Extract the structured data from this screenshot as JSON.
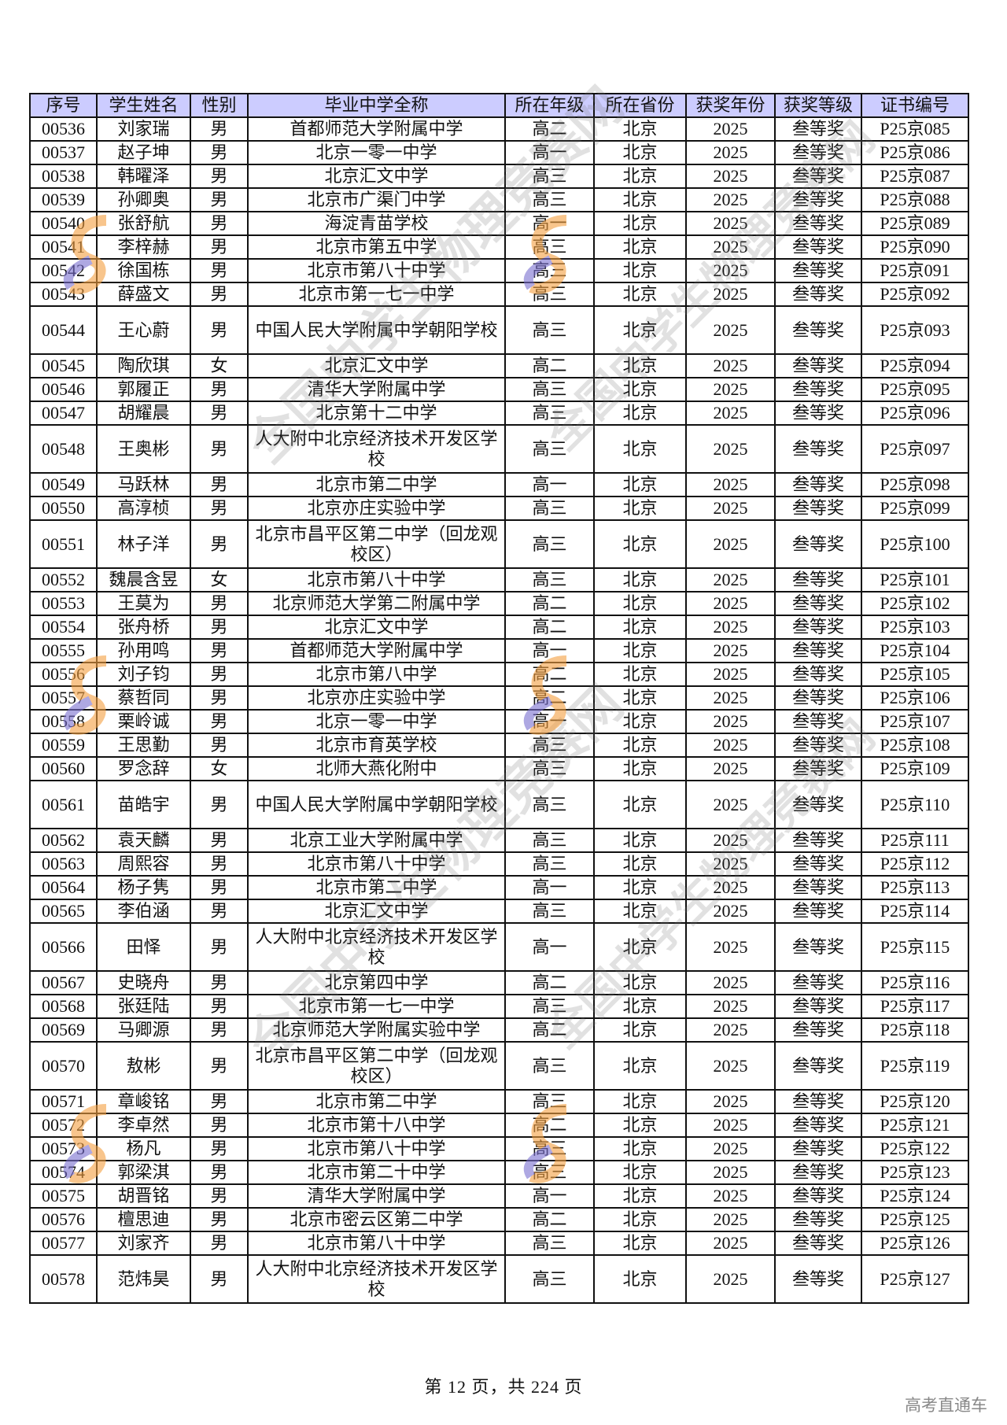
{
  "table": {
    "headers": [
      "序号",
      "学生姓名",
      "性别",
      "毕业中学全称",
      "所在年级",
      "所在省份",
      "获奖年份",
      "获奖等级",
      "证书编号"
    ],
    "rows": [
      [
        "00536",
        "刘家瑞",
        "男",
        "首都师范大学附属中学",
        "高二",
        "北京",
        "2025",
        "叁等奖",
        "P25京085"
      ],
      [
        "00537",
        "赵子坤",
        "男",
        "北京一零一中学",
        "高一",
        "北京",
        "2025",
        "叁等奖",
        "P25京086"
      ],
      [
        "00538",
        "韩曜泽",
        "男",
        "北京汇文中学",
        "高三",
        "北京",
        "2025",
        "叁等奖",
        "P25京087"
      ],
      [
        "00539",
        "孙卿奥",
        "男",
        "北京市广渠门中学",
        "高三",
        "北京",
        "2025",
        "叁等奖",
        "P25京088"
      ],
      [
        "00540",
        "张舒航",
        "男",
        "海淀青苗学校",
        "高一",
        "北京",
        "2025",
        "叁等奖",
        "P25京089"
      ],
      [
        "00541",
        "李梓赫",
        "男",
        "北京市第五中学",
        "高三",
        "北京",
        "2025",
        "叁等奖",
        "P25京090"
      ],
      [
        "00542",
        "徐国栋",
        "男",
        "北京市第八十中学",
        "高三",
        "北京",
        "2025",
        "叁等奖",
        "P25京091"
      ],
      [
        "00543",
        "薛盛文",
        "男",
        "北京市第一七一中学",
        "高三",
        "北京",
        "2025",
        "叁等奖",
        "P25京092"
      ],
      [
        "00544",
        "王心蔚",
        "男",
        "中国人民大学附属中学朝阳学校",
        "高三",
        "北京",
        "2025",
        "叁等奖",
        "P25京093"
      ],
      [
        "00545",
        "陶欣琪",
        "女",
        "北京汇文中学",
        "高二",
        "北京",
        "2025",
        "叁等奖",
        "P25京094"
      ],
      [
        "00546",
        "郭履正",
        "男",
        "清华大学附属中学",
        "高三",
        "北京",
        "2025",
        "叁等奖",
        "P25京095"
      ],
      [
        "00547",
        "胡耀晨",
        "男",
        "北京第十二中学",
        "高三",
        "北京",
        "2025",
        "叁等奖",
        "P25京096"
      ],
      [
        "00548",
        "王奥彬",
        "男",
        "人大附中北京经济技术开发区学校",
        "高三",
        "北京",
        "2025",
        "叁等奖",
        "P25京097"
      ],
      [
        "00549",
        "马跃林",
        "男",
        "北京市第二中学",
        "高一",
        "北京",
        "2025",
        "叁等奖",
        "P25京098"
      ],
      [
        "00550",
        "高淳桢",
        "男",
        "北京亦庄实验中学",
        "高三",
        "北京",
        "2025",
        "叁等奖",
        "P25京099"
      ],
      [
        "00551",
        "林子洋",
        "男",
        "北京市昌平区第二中学（回龙观校区）",
        "高三",
        "北京",
        "2025",
        "叁等奖",
        "P25京100"
      ],
      [
        "00552",
        "魏晨含昱",
        "女",
        "北京市第八十中学",
        "高三",
        "北京",
        "2025",
        "叁等奖",
        "P25京101"
      ],
      [
        "00553",
        "王莫为",
        "男",
        "北京师范大学第二附属中学",
        "高二",
        "北京",
        "2025",
        "叁等奖",
        "P25京102"
      ],
      [
        "00554",
        "张舟桥",
        "男",
        "北京汇文中学",
        "高二",
        "北京",
        "2025",
        "叁等奖",
        "P25京103"
      ],
      [
        "00555",
        "孙用鸣",
        "男",
        "首都师范大学附属中学",
        "高一",
        "北京",
        "2025",
        "叁等奖",
        "P25京104"
      ],
      [
        "00556",
        "刘子钧",
        "男",
        "北京市第八中学",
        "高二",
        "北京",
        "2025",
        "叁等奖",
        "P25京105"
      ],
      [
        "00557",
        "蔡哲同",
        "男",
        "北京亦庄实验中学",
        "高二",
        "北京",
        "2025",
        "叁等奖",
        "P25京106"
      ],
      [
        "00558",
        "栗岭诚",
        "男",
        "北京一零一中学",
        "高一",
        "北京",
        "2025",
        "叁等奖",
        "P25京107"
      ],
      [
        "00559",
        "王思勤",
        "男",
        "北京市育英学校",
        "高三",
        "北京",
        "2025",
        "叁等奖",
        "P25京108"
      ],
      [
        "00560",
        "罗念辞",
        "女",
        "北师大燕化附中",
        "高三",
        "北京",
        "2025",
        "叁等奖",
        "P25京109"
      ],
      [
        "00561",
        "苗皓宇",
        "男",
        "中国人民大学附属中学朝阳学校",
        "高三",
        "北京",
        "2025",
        "叁等奖",
        "P25京110"
      ],
      [
        "00562",
        "袁天麟",
        "男",
        "北京工业大学附属中学",
        "高三",
        "北京",
        "2025",
        "叁等奖",
        "P25京111"
      ],
      [
        "00563",
        "周熙容",
        "男",
        "北京市第八十中学",
        "高三",
        "北京",
        "2025",
        "叁等奖",
        "P25京112"
      ],
      [
        "00564",
        "杨子隽",
        "男",
        "北京市第二中学",
        "高一",
        "北京",
        "2025",
        "叁等奖",
        "P25京113"
      ],
      [
        "00565",
        "李伯涵",
        "男",
        "北京汇文中学",
        "高三",
        "北京",
        "2025",
        "叁等奖",
        "P25京114"
      ],
      [
        "00566",
        "田怿",
        "男",
        "人大附中北京经济技术开发区学校",
        "高一",
        "北京",
        "2025",
        "叁等奖",
        "P25京115"
      ],
      [
        "00567",
        "史晓舟",
        "男",
        "北京第四中学",
        "高二",
        "北京",
        "2025",
        "叁等奖",
        "P25京116"
      ],
      [
        "00568",
        "张廷陆",
        "男",
        "北京市第一七一中学",
        "高三",
        "北京",
        "2025",
        "叁等奖",
        "P25京117"
      ],
      [
        "00569",
        "马卿源",
        "男",
        "北京师范大学附属实验中学",
        "高二",
        "北京",
        "2025",
        "叁等奖",
        "P25京118"
      ],
      [
        "00570",
        "敖彬",
        "男",
        "北京市昌平区第二中学（回龙观校区）",
        "高三",
        "北京",
        "2025",
        "叁等奖",
        "P25京119"
      ],
      [
        "00571",
        "章峻铭",
        "男",
        "北京市第二中学",
        "高三",
        "北京",
        "2025",
        "叁等奖",
        "P25京120"
      ],
      [
        "00572",
        "李卓然",
        "男",
        "北京市第十八中学",
        "高二",
        "北京",
        "2025",
        "叁等奖",
        "P25京121"
      ],
      [
        "00573",
        "杨凡",
        "男",
        "北京市第八十中学",
        "高三",
        "北京",
        "2025",
        "叁等奖",
        "P25京122"
      ],
      [
        "00574",
        "郭梁淇",
        "男",
        "北京市第二十中学",
        "高三",
        "北京",
        "2025",
        "叁等奖",
        "P25京123"
      ],
      [
        "00575",
        "胡晋铭",
        "男",
        "清华大学附属中学",
        "高一",
        "北京",
        "2025",
        "叁等奖",
        "P25京124"
      ],
      [
        "00576",
        "檀思迪",
        "男",
        "北京市密云区第二中学",
        "高二",
        "北京",
        "2025",
        "叁等奖",
        "P25京125"
      ],
      [
        "00577",
        "刘家齐",
        "男",
        "北京市第八十中学",
        "高三",
        "北京",
        "2025",
        "叁等奖",
        "P25京126"
      ],
      [
        "00578",
        "范炜昊",
        "男",
        "人大附中北京经济技术开发区学校",
        "高三",
        "北京",
        "2025",
        "叁等奖",
        "P25京127"
      ]
    ]
  },
  "footer": {
    "page_text": "第 12 页，共 224 页"
  },
  "brand": "高考直通车",
  "watermark": {
    "text": "全国中学生物理竞赛网",
    "society": "中国物理学会 Chinese Physical Society"
  },
  "colors": {
    "header_bg": "#ccccff",
    "border": "#111111",
    "brand_text": "#888888"
  }
}
